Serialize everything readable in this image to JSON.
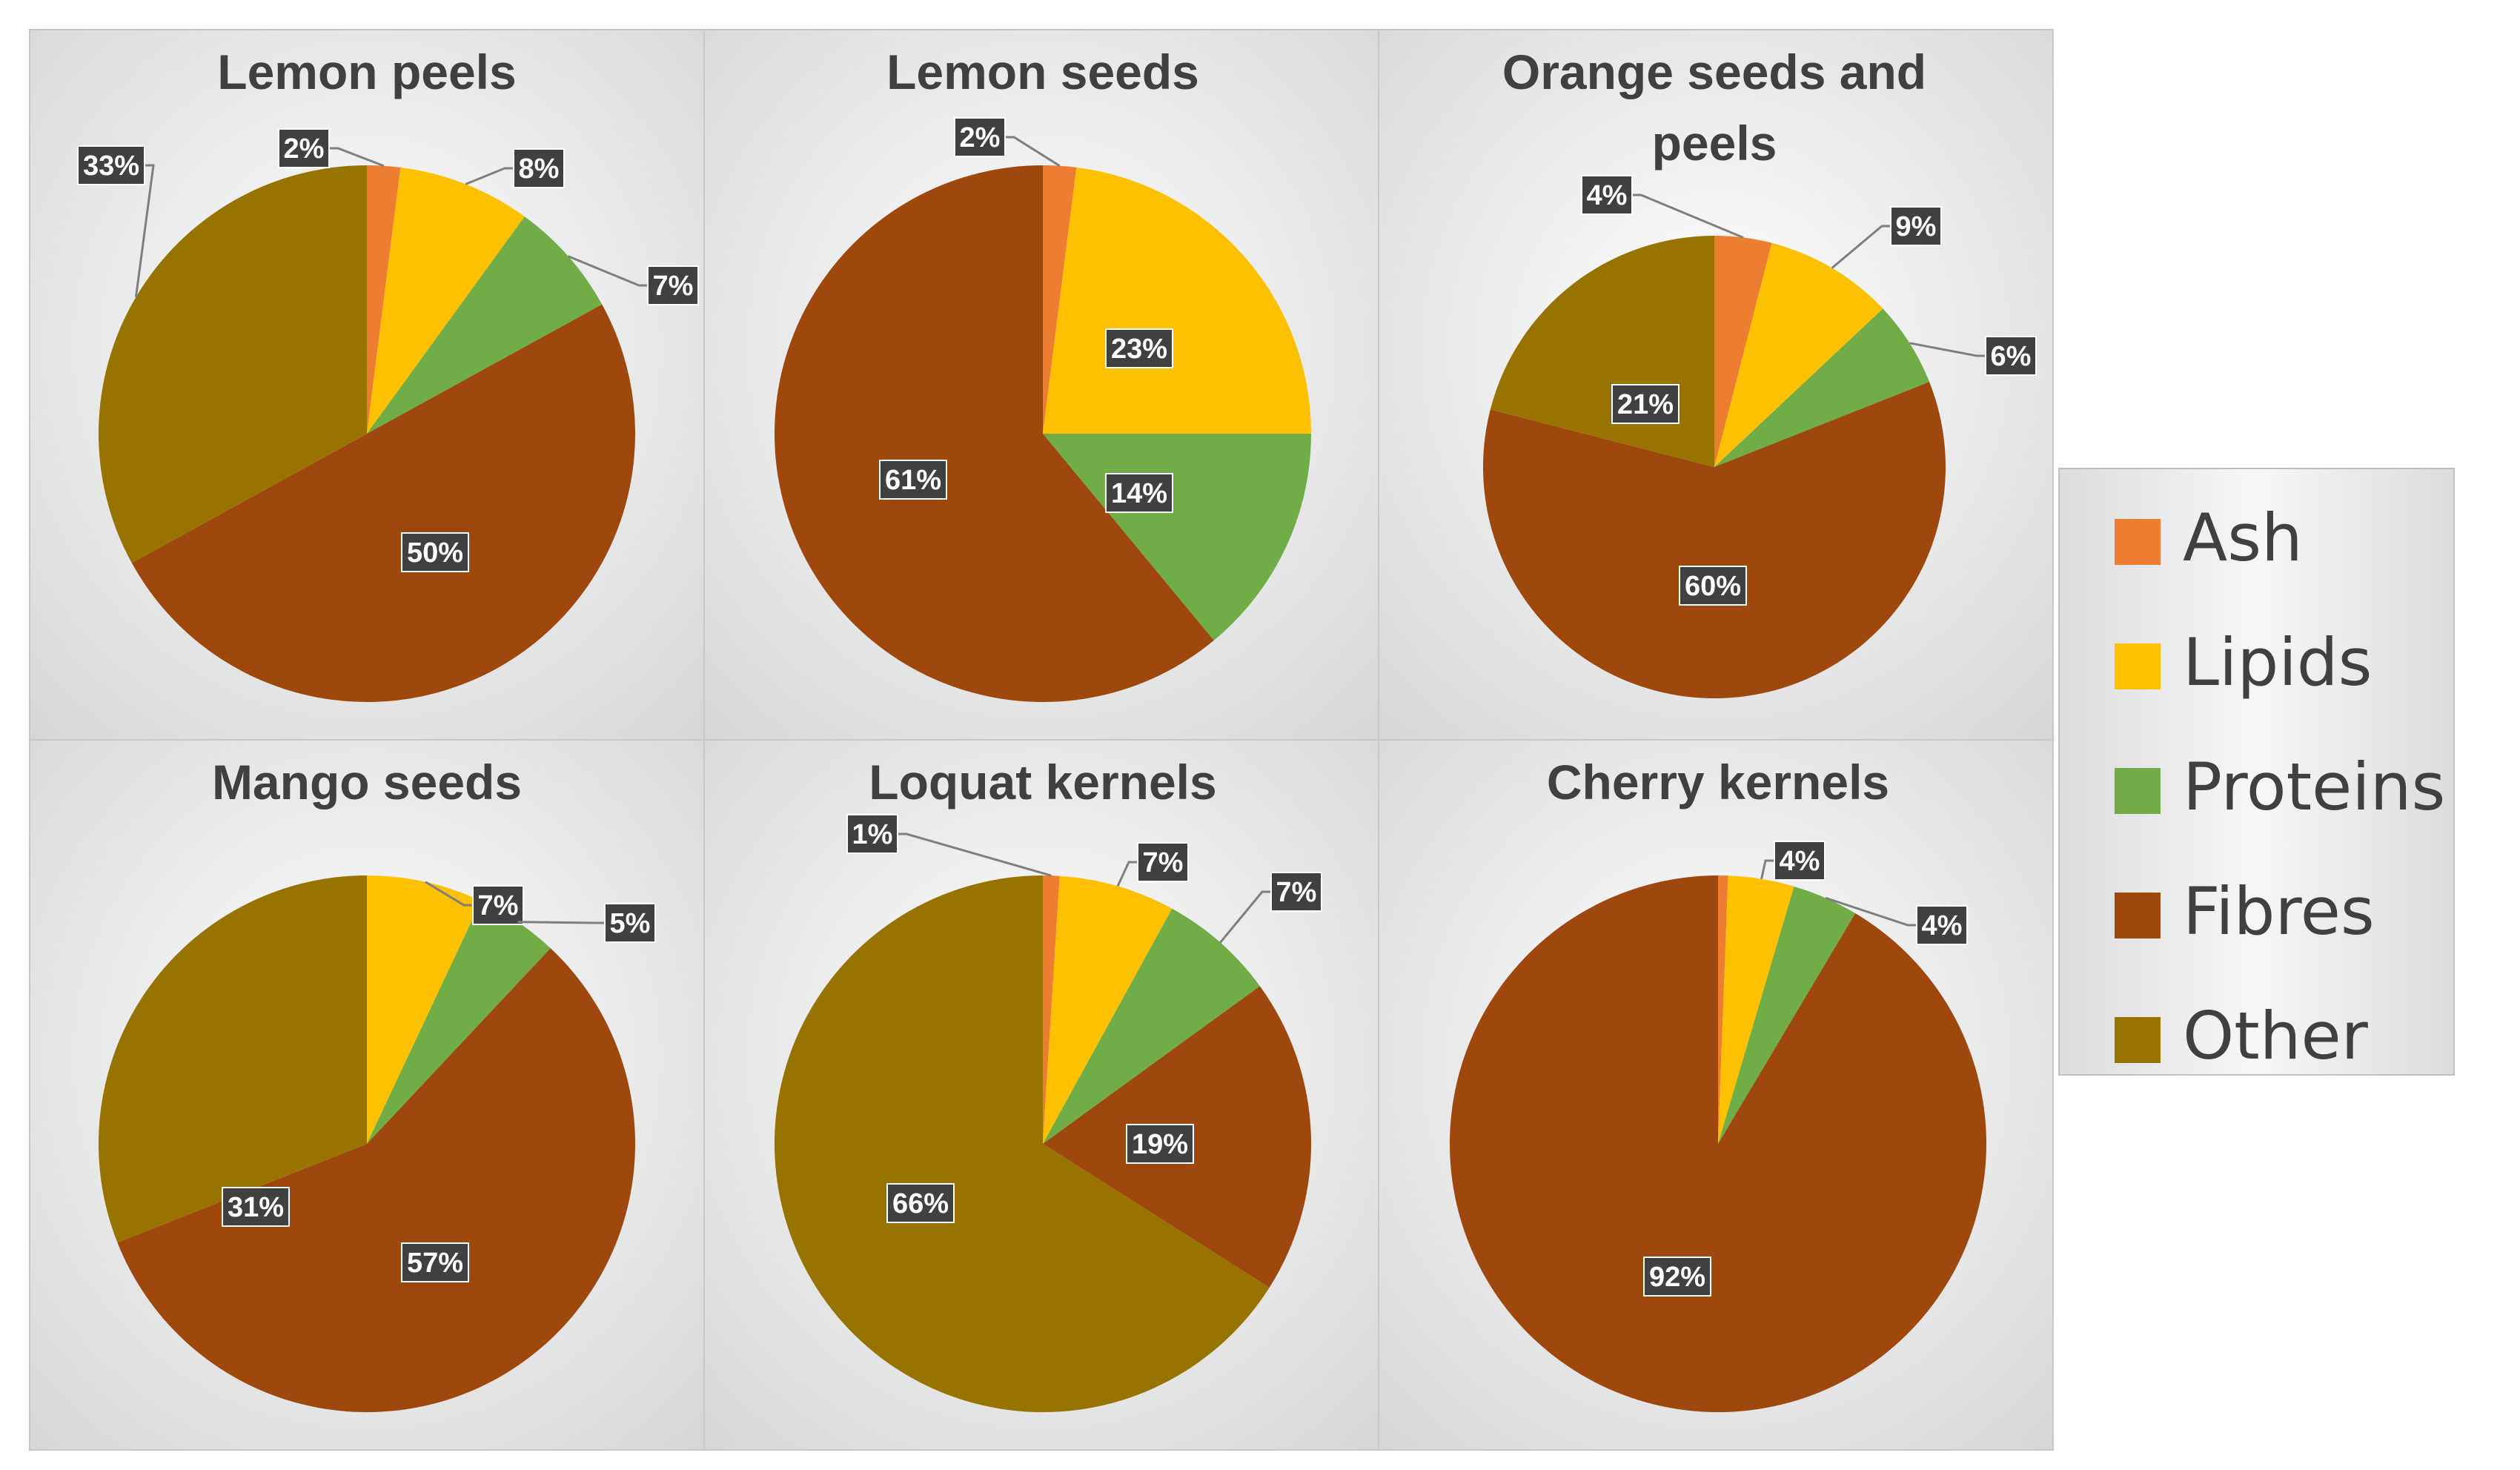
{
  "chart_data": {
    "type": "pie",
    "categories": [
      "Ash",
      "Lipids",
      "Proteins",
      "Fibres",
      "Other"
    ],
    "colors": [
      "#ED7D31",
      "#FFC000",
      "#70AD47",
      "#9E480E",
      "#997300"
    ],
    "legend_position": "right",
    "panels": [
      {
        "title_lines": [
          "Lemon peels"
        ],
        "values": [
          2,
          8,
          7,
          50,
          33
        ],
        "labels": [
          "2%",
          "8%",
          "7%",
          "50%",
          "33%"
        ]
      },
      {
        "title_lines": [
          "Lemon seeds"
        ],
        "values": [
          2,
          23,
          14,
          61,
          0
        ],
        "labels": [
          "2%",
          "23%",
          "14%",
          "61%",
          ""
        ]
      },
      {
        "title_lines": [
          "Orange seeds and",
          "peels"
        ],
        "values": [
          4,
          9,
          6,
          60,
          21
        ],
        "labels": [
          "4%",
          "9%",
          "6%",
          "60%",
          "21%"
        ]
      },
      {
        "title_lines": [
          "Mango seeds"
        ],
        "values": [
          0,
          7,
          5,
          57,
          31
        ],
        "labels": [
          "",
          "7%",
          "5%",
          "57%",
          "31%"
        ]
      },
      {
        "title_lines": [
          "Loquat kernels"
        ],
        "values": [
          1,
          7,
          7,
          19,
          66
        ],
        "labels": [
          "1%",
          "7%",
          "7%",
          "19%",
          "66%"
        ]
      },
      {
        "title_lines": [
          "Cherry kernels"
        ],
        "values": [
          0.6,
          4,
          4,
          92,
          0
        ],
        "labels": [
          "",
          "4%",
          "4%",
          "92%",
          ""
        ]
      }
    ]
  }
}
